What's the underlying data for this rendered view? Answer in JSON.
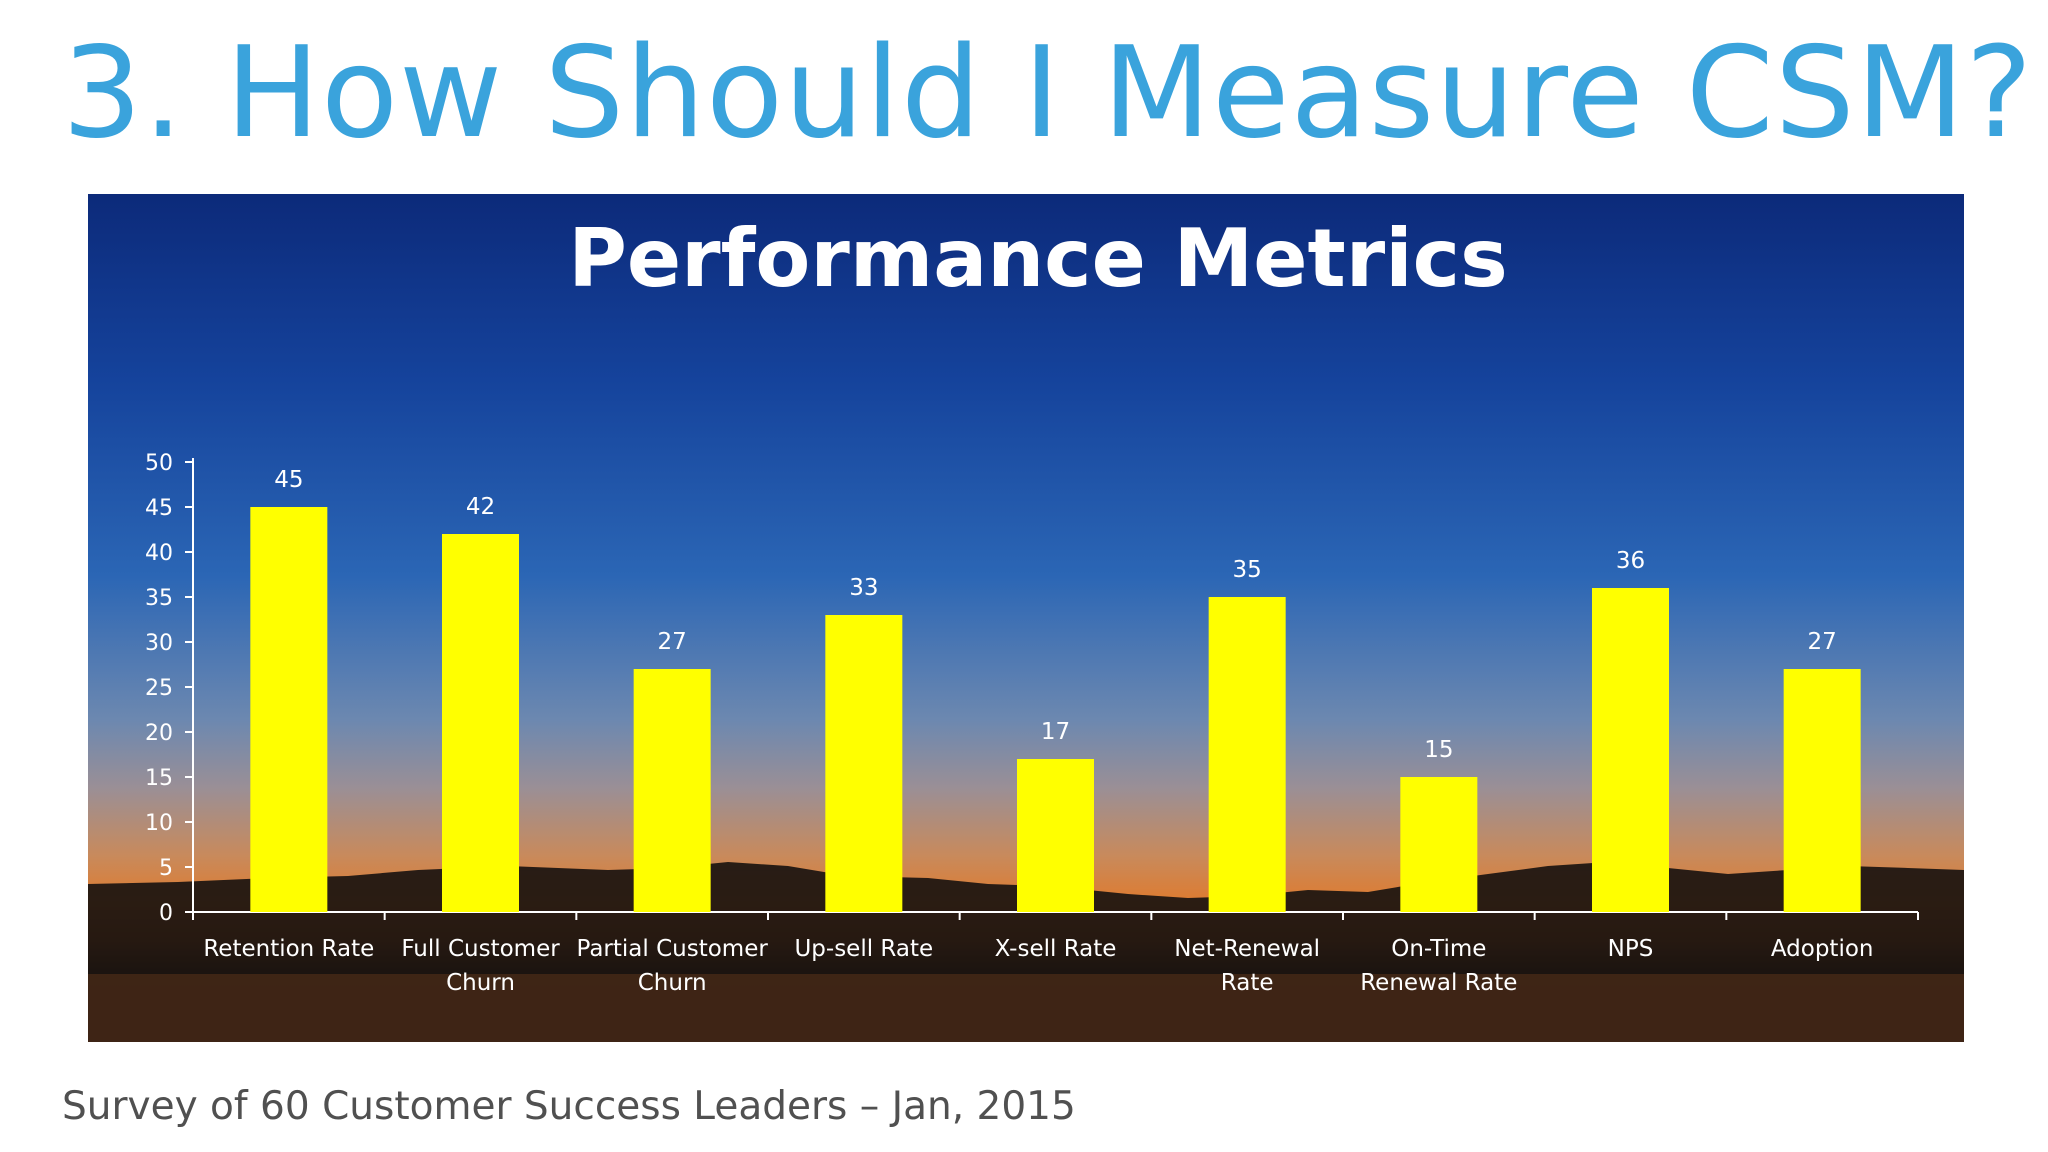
{
  "slide": {
    "title": "3.  How Should I Measure CSM?",
    "footer": "Survey of 60 Customer Success Leaders – Jan, 2015"
  },
  "colors": {
    "title": "#3aa3dc",
    "bar": "#ffff00",
    "text": "#ffffff"
  },
  "chart_data": {
    "type": "bar",
    "title": "Performance Metrics",
    "xlabel": "",
    "ylabel": "",
    "categories": [
      [
        "Retention Rate"
      ],
      [
        "Full Customer",
        "Churn"
      ],
      [
        "Partial Customer",
        "Churn"
      ],
      [
        "Up-sell Rate"
      ],
      [
        "X-sell Rate"
      ],
      [
        "Net-Renewal",
        "Rate"
      ],
      [
        "On-Time",
        "Renewal Rate"
      ],
      [
        "NPS"
      ],
      [
        "Adoption"
      ]
    ],
    "values": [
      45,
      42,
      27,
      33,
      17,
      35,
      15,
      36,
      27
    ],
    "ylim": [
      0,
      50
    ],
    "yticks": [
      0,
      5,
      10,
      15,
      20,
      25,
      30,
      35,
      40,
      45,
      50
    ],
    "data_labels": true,
    "grid": false,
    "legend": "none"
  }
}
